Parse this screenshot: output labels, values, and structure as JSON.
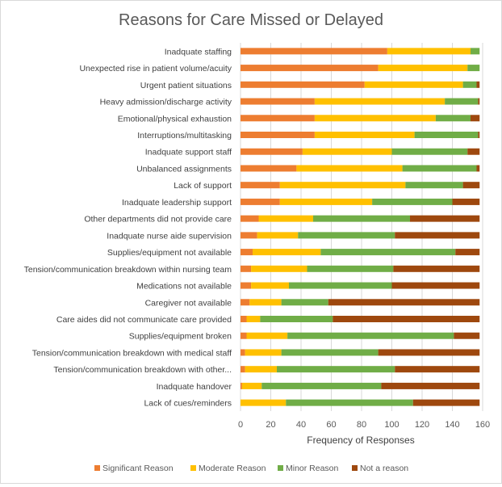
{
  "chart_data": {
    "type": "bar",
    "orientation": "horizontal",
    "stacked": true,
    "title": "Reasons for Care Missed or Delayed",
    "xlabel": "Frequency of Responses",
    "ylabel": "",
    "xlim": [
      0,
      160
    ],
    "xticks": [
      0,
      20,
      40,
      60,
      80,
      100,
      120,
      140,
      160
    ],
    "grid": true,
    "legend_position": "bottom",
    "colors": {
      "Significant Reason": "#ED7D31",
      "Moderate Reason": "#FFC000",
      "Minor Reason": "#70AD47",
      "Not a reason": "#9E480E"
    },
    "categories": [
      "Inadquate staffing",
      "Unexpected rise in patient volume/acuity",
      "Urgent patient situations",
      "Heavy admission/discharge activity",
      "Emotional/physical exhaustion",
      "Interruptions/multitasking",
      "Inadquate support staff",
      "Unbalanced assignments",
      "Lack of support",
      "Inadquate leadership support",
      "Other departments did not provide care",
      "Inadquate nurse aide supervision",
      "Supplies/equipment not available",
      "Tension/communication breakdown within nursing team",
      "Medications not available",
      "Caregiver not available",
      "Care aides did not communicate care provided",
      "Supplies/equipment broken",
      "Tension/communication breakdown with medical staff",
      "Tension/communication breakdown with other...",
      "Inadquate handover",
      "Lack of cues/reminders"
    ],
    "series": [
      {
        "name": "Significant Reason",
        "values": [
          97,
          91,
          82,
          49,
          49,
          49,
          41,
          37,
          26,
          26,
          12,
          11,
          8,
          7,
          7,
          6,
          4,
          4,
          3,
          3,
          1,
          0
        ]
      },
      {
        "name": "Moderate Reason",
        "values": [
          55,
          59,
          65,
          86,
          80,
          66,
          59,
          70,
          83,
          61,
          36,
          27,
          45,
          37,
          25,
          21,
          9,
          27,
          24,
          21,
          13,
          30
        ]
      },
      {
        "name": "Minor Reason",
        "values": [
          6,
          8,
          9,
          22,
          23,
          42,
          50,
          49,
          38,
          53,
          64,
          64,
          89,
          57,
          68,
          31,
          48,
          110,
          64,
          78,
          79,
          84
        ]
      },
      {
        "name": "Not a reason",
        "values": [
          0,
          0,
          2,
          1,
          6,
          1,
          8,
          2,
          11,
          18,
          46,
          56,
          16,
          57,
          58,
          100,
          97,
          17,
          67,
          56,
          65,
          44
        ]
      }
    ]
  }
}
